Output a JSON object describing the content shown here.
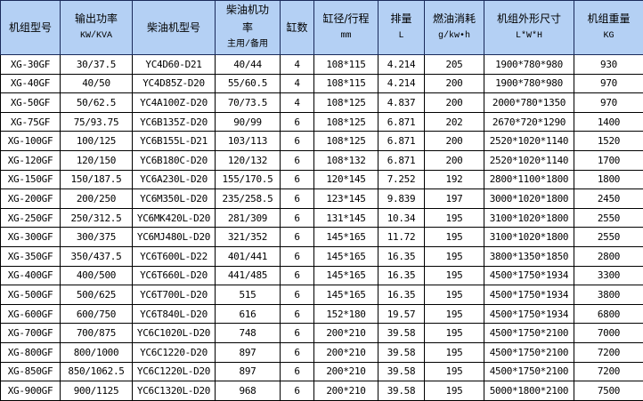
{
  "table": {
    "headers": [
      {
        "title": "机组型号",
        "sub": ""
      },
      {
        "title": "输出功率",
        "sub": "KW/KVA"
      },
      {
        "title": "柴油机型号",
        "sub": ""
      },
      {
        "title": "柴油机功率",
        "sub": "主用/备用"
      },
      {
        "title": "缸数",
        "sub": ""
      },
      {
        "title": "缸径/行程",
        "sub": "mm"
      },
      {
        "title": "排量",
        "sub": "L"
      },
      {
        "title": "燃油消耗",
        "sub": "g/kw•h"
      },
      {
        "title": "机组外形尺寸",
        "sub": "L*W*H"
      },
      {
        "title": "机组重量",
        "sub": "KG"
      }
    ],
    "rows": [
      [
        "XG-30GF",
        "30/37.5",
        "YC4D60-D21",
        "40/44",
        "4",
        "108*115",
        "4.214",
        "205",
        "1900*780*980",
        "930"
      ],
      [
        "XG-40GF",
        "40/50",
        "YC4D85Z-D20",
        "55/60.5",
        "4",
        "108*115",
        "4.214",
        "200",
        "1900*780*980",
        "970"
      ],
      [
        "XG-50GF",
        "50/62.5",
        "YC4A100Z-D20",
        "70/73.5",
        "4",
        "108*125",
        "4.837",
        "200",
        "2000*780*1350",
        "970"
      ],
      [
        "XG-75GF",
        "75/93.75",
        "YC6B135Z-D20",
        "90/99",
        "6",
        "108*125",
        "6.871",
        "202",
        "2670*720*1290",
        "1400"
      ],
      [
        "XG-100GF",
        "100/125",
        "YC6B155L-D21",
        "103/113",
        "6",
        "108*125",
        "6.871",
        "200",
        "2520*1020*1140",
        "1520"
      ],
      [
        "XG-120GF",
        "120/150",
        "YC6B180C-D20",
        "120/132",
        "6",
        "108*132",
        "6.871",
        "200",
        "2520*1020*1140",
        "1700"
      ],
      [
        "XG-150GF",
        "150/187.5",
        "YC6A230L-D20",
        "155/170.5",
        "6",
        "120*145",
        "7.252",
        "192",
        "2800*1100*1800",
        "1800"
      ],
      [
        "XG-200GF",
        "200/250",
        "YC6M350L-D20",
        "235/258.5",
        "6",
        "123*145",
        "9.839",
        "197",
        "3000*1020*1800",
        "2450"
      ],
      [
        "XG-250GF",
        "250/312.5",
        "YC6MK420L-D20",
        "281/309",
        "6",
        "131*145",
        "10.34",
        "195",
        "3100*1020*1800",
        "2550"
      ],
      [
        "XG-300GF",
        "300/375",
        "YC6MJ480L-D20",
        "321/352",
        "6",
        "145*165",
        "11.72",
        "195",
        "3100*1020*1800",
        "2550"
      ],
      [
        "XG-350GF",
        "350/437.5",
        "YC6T600L-D22",
        "401/441",
        "6",
        "145*165",
        "16.35",
        "195",
        "3800*1350*1850",
        "2800"
      ],
      [
        "XG-400GF",
        "400/500",
        "YC6T660L-D20",
        "441/485",
        "6",
        "145*165",
        "16.35",
        "195",
        "4500*1750*1934",
        "3300"
      ],
      [
        "XG-500GF",
        "500/625",
        "YC6T700L-D20",
        "515",
        "6",
        "145*165",
        "16.35",
        "195",
        "4500*1750*1934",
        "3800"
      ],
      [
        "XG-600GF",
        "600/750",
        "YC6T840L-D20",
        "616",
        "6",
        "152*180",
        "19.57",
        "195",
        "4500*1750*1934",
        "6800"
      ],
      [
        "XG-700GF",
        "700/875",
        "YC6C1020L-D20",
        "748",
        "6",
        "200*210",
        "39.58",
        "195",
        "4500*1750*2100",
        "7000"
      ],
      [
        "XG-800GF",
        "800/1000",
        "YC6C1220-D20",
        "897",
        "6",
        "200*210",
        "39.58",
        "195",
        "4500*1750*2100",
        "7200"
      ],
      [
        "XG-850GF",
        "850/1062.5",
        "YC6C1220L-D20",
        "897",
        "6",
        "200*210",
        "39.58",
        "195",
        "4500*1750*2100",
        "7200"
      ],
      [
        "XG-900GF",
        "900/1125",
        "YC6C1320L-D20",
        "968",
        "6",
        "200*210",
        "39.58",
        "195",
        "5000*1800*2100",
        "7500"
      ]
    ]
  }
}
